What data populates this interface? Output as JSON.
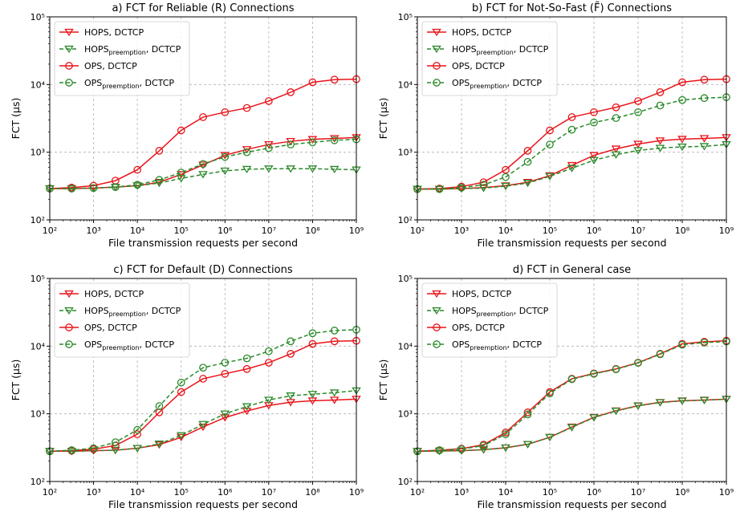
{
  "chart_data": [
    {
      "type": "line",
      "title": "a) FCT for Reliable (R) Connections",
      "xlabel": "File transmission requests per second",
      "ylabel": "FCT (μs)",
      "xscale": "log",
      "yscale": "log",
      "xlim": [
        100,
        1000000000
      ],
      "ylim": [
        100,
        100000
      ],
      "grid": true,
      "legend": "top-left",
      "x": [
        100,
        316,
        1000,
        3162,
        10000,
        31623,
        100000,
        316228,
        1000000,
        3162278,
        10000000,
        31622777,
        100000000,
        316227766,
        1000000000
      ],
      "series": [
        {
          "name": "HOPS, DCTCP",
          "color": "#e8141a",
          "dash": "solid",
          "marker": "triangle-down",
          "values": [
            290,
            290,
            295,
            305,
            320,
            360,
            470,
            650,
            900,
            1100,
            1300,
            1450,
            1550,
            1600,
            1650
          ]
        },
        {
          "name": "HOPS_preemption, DCTCP",
          "color": "#2a8a2a",
          "dash": "dashed",
          "marker": "triangle-down",
          "values": [
            290,
            290,
            295,
            305,
            320,
            350,
            410,
            470,
            530,
            560,
            570,
            570,
            570,
            560,
            550
          ]
        },
        {
          "name": "OPS, DCTCP",
          "color": "#e8141a",
          "dash": "solid",
          "marker": "circle",
          "values": [
            290,
            300,
            320,
            380,
            550,
            1050,
            2100,
            3300,
            3900,
            4500,
            5700,
            7700,
            10800,
            11800,
            12000
          ]
        },
        {
          "name": "OPS_preemption, DCTCP",
          "color": "#2a8a2a",
          "dash": "dashed",
          "marker": "circle",
          "values": [
            290,
            290,
            295,
            305,
            330,
            390,
            500,
            670,
            850,
            1000,
            1150,
            1300,
            1400,
            1500,
            1550
          ]
        }
      ]
    },
    {
      "type": "line",
      "title": "b) FCT for Not-So-Fast (F̃) Connections",
      "xlabel": "File transmission requests per second",
      "ylabel": "FCT (μs)",
      "xscale": "log",
      "yscale": "log",
      "xlim": [
        100,
        1000000000
      ],
      "ylim": [
        100,
        100000
      ],
      "grid": true,
      "legend": "top-left",
      "x": [
        100,
        316,
        1000,
        3162,
        10000,
        31623,
        100000,
        316228,
        1000000,
        3162278,
        10000000,
        31622777,
        100000000,
        316227766,
        1000000000
      ],
      "series": [
        {
          "name": "HOPS, DCTCP",
          "color": "#e8141a",
          "dash": "solid",
          "marker": "triangle-down",
          "values": [
            285,
            285,
            290,
            300,
            320,
            360,
            450,
            640,
            900,
            1120,
            1320,
            1480,
            1560,
            1600,
            1650
          ]
        },
        {
          "name": "HOPS_preemption, DCTCP",
          "color": "#2a8a2a",
          "dash": "dashed",
          "marker": "triangle-down",
          "values": [
            285,
            285,
            290,
            295,
            315,
            350,
            440,
            580,
            760,
            920,
            1060,
            1150,
            1200,
            1220,
            1300
          ]
        },
        {
          "name": "OPS, DCTCP",
          "color": "#e8141a",
          "dash": "solid",
          "marker": "circle",
          "values": [
            285,
            290,
            310,
            360,
            550,
            1050,
            2100,
            3300,
            3900,
            4600,
            5700,
            7700,
            10800,
            11800,
            12000
          ]
        },
        {
          "name": "OPS_preemption, DCTCP",
          "color": "#2a8a2a",
          "dash": "dashed",
          "marker": "circle",
          "values": [
            285,
            285,
            300,
            330,
            430,
            720,
            1300,
            2150,
            2750,
            3200,
            3900,
            4900,
            5900,
            6300,
            6500
          ]
        }
      ]
    },
    {
      "type": "line",
      "title": "c) FCT for Default (D) Connections",
      "xlabel": "File transmission requests per second",
      "ylabel": "FCT (μs)",
      "xscale": "log",
      "yscale": "log",
      "xlim": [
        100,
        1000000000
      ],
      "ylim": [
        100,
        100000
      ],
      "grid": true,
      "legend": "top-left",
      "x": [
        100,
        316,
        1000,
        3162,
        10000,
        31623,
        100000,
        316228,
        1000000,
        3162278,
        10000000,
        31622777,
        100000000,
        316227766,
        1000000000
      ],
      "series": [
        {
          "name": "HOPS, DCTCP",
          "color": "#e8141a",
          "dash": "solid",
          "marker": "triangle-down",
          "values": [
            280,
            280,
            285,
            290,
            310,
            350,
            450,
            640,
            880,
            1100,
            1330,
            1480,
            1560,
            1600,
            1650
          ]
        },
        {
          "name": "HOPS_preemption, DCTCP",
          "color": "#2a8a2a",
          "dash": "dashed",
          "marker": "triangle-down",
          "values": [
            280,
            280,
            285,
            290,
            310,
            360,
            480,
            700,
            1000,
            1280,
            1600,
            1850,
            1950,
            2050,
            2200
          ]
        },
        {
          "name": "OPS, DCTCP",
          "color": "#e8141a",
          "dash": "solid",
          "marker": "circle",
          "values": [
            280,
            285,
            300,
            340,
            500,
            1050,
            2100,
            3300,
            3900,
            4600,
            5700,
            7700,
            10800,
            11800,
            12000
          ]
        },
        {
          "name": "OPS_preemption, DCTCP",
          "color": "#2a8a2a",
          "dash": "dashed",
          "marker": "circle",
          "values": [
            280,
            290,
            310,
            380,
            580,
            1300,
            2900,
            4800,
            5700,
            6600,
            8400,
            11800,
            15500,
            17000,
            17500
          ]
        }
      ]
    },
    {
      "type": "line",
      "title": "d) FCT in General case",
      "xlabel": "File transmission requests per second",
      "ylabel": "FCT (μs)",
      "xscale": "log",
      "yscale": "log",
      "xlim": [
        100,
        1000000000
      ],
      "ylim": [
        100,
        100000
      ],
      "grid": true,
      "legend": "top-left",
      "x": [
        100,
        316,
        1000,
        3162,
        10000,
        31623,
        100000,
        316228,
        1000000,
        3162278,
        10000000,
        31622777,
        100000000,
        316227766,
        1000000000
      ],
      "series": [
        {
          "name": "HOPS, DCTCP",
          "color": "#e8141a",
          "dash": "solid",
          "marker": "triangle-down",
          "values": [
            280,
            282,
            285,
            295,
            315,
            355,
            450,
            640,
            890,
            1110,
            1320,
            1480,
            1560,
            1600,
            1650
          ]
        },
        {
          "name": "HOPS_preemption, DCTCP",
          "color": "#2a8a2a",
          "dash": "dashed",
          "marker": "triangle-down",
          "values": [
            280,
            282,
            285,
            295,
            315,
            355,
            450,
            630,
            880,
            1100,
            1310,
            1470,
            1550,
            1590,
            1640
          ]
        },
        {
          "name": "OPS, DCTCP",
          "color": "#e8141a",
          "dash": "solid",
          "marker": "circle",
          "values": [
            280,
            290,
            305,
            350,
            530,
            1050,
            2100,
            3300,
            3950,
            4600,
            5700,
            7700,
            10800,
            11600,
            12000
          ]
        },
        {
          "name": "OPS_preemption, DCTCP",
          "color": "#2a8a2a",
          "dash": "dashed",
          "marker": "circle",
          "values": [
            280,
            288,
            300,
            340,
            500,
            980,
            2000,
            3250,
            3900,
            4550,
            5650,
            7600,
            10500,
            11300,
            11700
          ]
        }
      ]
    }
  ]
}
